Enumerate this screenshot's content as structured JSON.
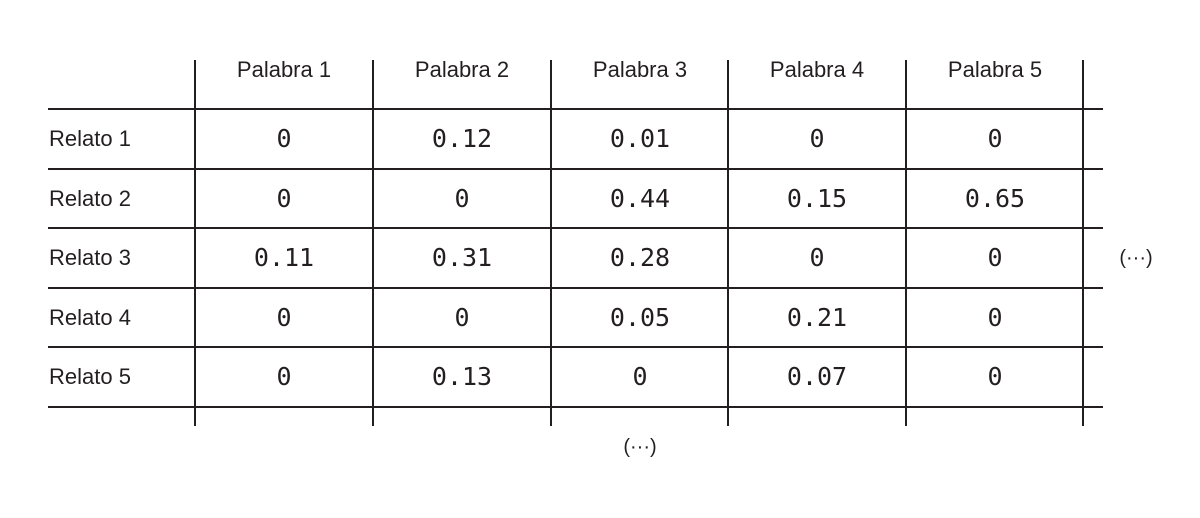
{
  "table": {
    "columns": [
      "Palabra 1",
      "Palabra 2",
      "Palabra 3",
      "Palabra 4",
      "Palabra 5"
    ],
    "rows": [
      {
        "label": "Relato 1",
        "values": [
          "0",
          "0.12",
          "0.01",
          "0",
          "0"
        ]
      },
      {
        "label": "Relato 2",
        "values": [
          "0",
          "0",
          "0.44",
          "0.15",
          "0.65"
        ]
      },
      {
        "label": "Relato 3",
        "values": [
          "0.11",
          "0.31",
          "0.28",
          "0",
          "0"
        ]
      },
      {
        "label": "Relato 4",
        "values": [
          "0",
          "0",
          "0.05",
          "0.21",
          "0"
        ]
      },
      {
        "label": "Relato 5",
        "values": [
          "0",
          "0.13",
          "0",
          "0.07",
          "0"
        ]
      }
    ],
    "ellipsis_right": "(···)",
    "ellipsis_bottom": "(···)"
  },
  "colors": {
    "ink": "#231f20",
    "background": "#ffffff"
  }
}
